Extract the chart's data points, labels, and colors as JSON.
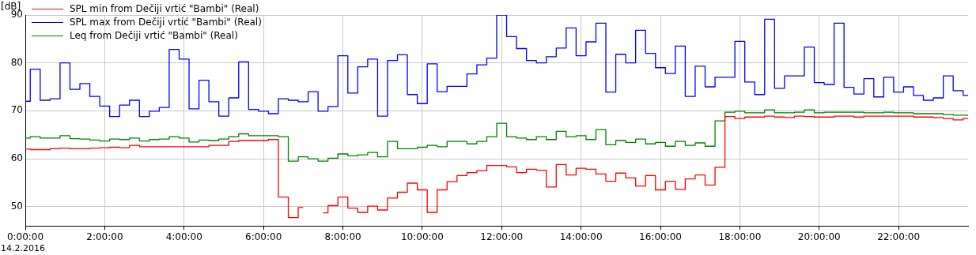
{
  "chart_data": {
    "type": "step",
    "ylabel": "[dB]",
    "annotations": [
      "14.2.2016"
    ],
    "x": [
      0,
      0.25,
      0.5,
      0.75,
      1,
      1.25,
      1.5,
      1.75,
      2,
      2.25,
      2.5,
      2.75,
      3,
      3.25,
      3.5,
      3.75,
      4,
      4.25,
      4.5,
      4.75,
      5,
      5.25,
      5.5,
      5.75,
      6,
      6.25,
      6.5,
      6.75,
      7,
      7.25,
      7.5,
      7.75,
      8,
      8.25,
      8.5,
      8.75,
      9,
      9.25,
      9.5,
      9.75,
      10,
      10.25,
      10.5,
      10.75,
      11,
      11.25,
      11.5,
      11.75,
      12,
      12.25,
      12.5,
      12.75,
      13,
      13.25,
      13.5,
      13.75,
      14,
      14.25,
      14.5,
      14.75,
      15,
      15.25,
      15.5,
      15.75,
      16,
      16.25,
      16.5,
      16.75,
      17,
      17.25,
      17.5,
      17.75,
      18,
      18.25,
      18.5,
      18.75,
      19,
      19.25,
      19.5,
      19.75,
      20,
      20.25,
      20.5,
      20.75,
      21,
      21.25,
      21.5,
      21.75,
      22,
      22.25,
      22.5,
      22.75,
      23,
      23.25,
      23.5,
      23.75
    ],
    "series": [
      {
        "name": "SPL min from Dečiji vrtić \"Bambi\" (Real)",
        "color": "#ff0000",
        "values": [
          62.0,
          61.9,
          61.9,
          62.1,
          62.2,
          62.1,
          62.1,
          62.2,
          62.3,
          62.4,
          62.3,
          62.8,
          62.5,
          62.5,
          62.5,
          62.5,
          62.5,
          62.5,
          62.5,
          62.8,
          62.8,
          63.6,
          63.8,
          63.8,
          63.8,
          64.0,
          52.0,
          47.7,
          49.8,
          null,
          48.7,
          50.2,
          52.0,
          49.7,
          48.8,
          50.1,
          49.3,
          51.8,
          53.0,
          54.9,
          53.5,
          48.8,
          53.5,
          55.2,
          56.5,
          57.1,
          57.5,
          58.6,
          58.6,
          58.3,
          57.1,
          57.8,
          57.6,
          54.1,
          58.8,
          56.6,
          58.0,
          57.8,
          56.8,
          55.3,
          57.0,
          56.0,
          54.3,
          56.5,
          53.5,
          55.3,
          53.6,
          55.8,
          56.6,
          54.5,
          58.2,
          68.8,
          68.4,
          68.7,
          68.7,
          68.9,
          68.7,
          68.6,
          68.9,
          68.8,
          68.7,
          68.7,
          68.9,
          68.9,
          68.7,
          68.9,
          68.9,
          68.9,
          68.9,
          68.9,
          68.7,
          68.7,
          68.6,
          68.4,
          68.1,
          68.4
        ]
      },
      {
        "name": "SPL max from Dečiji vrtić \"Bambi\" (Real)",
        "color": "#0000ff",
        "values": [
          72.0,
          78.7,
          72.2,
          72.5,
          80.0,
          74.5,
          75.7,
          73.0,
          71.0,
          68.8,
          71.2,
          72.2,
          68.8,
          69.9,
          70.7,
          82.8,
          80.8,
          70.4,
          76.4,
          71.9,
          68.9,
          72.7,
          80.2,
          70.3,
          69.9,
          69.4,
          72.5,
          72.2,
          71.9,
          74.0,
          69.9,
          70.9,
          81.5,
          73.7,
          79.2,
          80.8,
          68.9,
          80.5,
          81.7,
          73.4,
          71.5,
          79.8,
          74.0,
          75.1,
          75.1,
          77.7,
          79.6,
          81.0,
          90.0,
          85.5,
          83.0,
          80.5,
          80.0,
          81.3,
          83.1,
          87.3,
          81.5,
          84.4,
          88.3,
          73.9,
          81.8,
          80.0,
          86.8,
          82.0,
          79.0,
          77.8,
          83.5,
          73.0,
          79.3,
          75.0,
          77.0,
          77.0,
          84.5,
          76.0,
          73.4,
          89.1,
          74.7,
          77.3,
          77.3,
          83.3,
          75.9,
          75.5,
          88.3,
          74.9,
          73.5,
          76.7,
          72.9,
          77.0,
          73.9,
          75.0,
          73.2,
          72.2,
          72.7,
          77.3,
          74.2,
          73.2
        ]
      },
      {
        "name": "Leq from Dečiji vrtić \"Bambi\" (Real)",
        "color": "#008000",
        "values": [
          64.3,
          64.6,
          64.3,
          64.3,
          64.8,
          64.2,
          64.1,
          63.9,
          63.7,
          64.1,
          64.0,
          64.3,
          63.7,
          64.0,
          64.1,
          64.6,
          64.3,
          63.5,
          63.9,
          63.8,
          64.1,
          64.6,
          65.2,
          64.8,
          64.8,
          64.8,
          64.6,
          59.5,
          60.4,
          60.0,
          59.5,
          60.1,
          61.0,
          60.6,
          60.8,
          61.3,
          60.4,
          63.6,
          62.1,
          62.1,
          62.4,
          62.8,
          62.5,
          63.6,
          63.6,
          63.1,
          63.6,
          64.6,
          67.4,
          64.6,
          64.3,
          64.0,
          64.6,
          64.0,
          65.7,
          64.6,
          64.8,
          64.0,
          66.1,
          62.9,
          63.8,
          63.4,
          64.1,
          63.1,
          63.4,
          62.6,
          63.6,
          62.8,
          63.3,
          62.6,
          67.9,
          69.7,
          69.9,
          69.6,
          69.6,
          70.2,
          69.6,
          69.6,
          69.7,
          70.2,
          69.6,
          69.7,
          69.7,
          69.7,
          69.7,
          69.6,
          69.6,
          69.7,
          69.6,
          69.6,
          69.4,
          69.4,
          69.4,
          69.2,
          69.1,
          69.1
        ]
      }
    ],
    "xlim": [
      0,
      23.75
    ],
    "xticks": [
      {
        "value": 0,
        "label": "0:00:00"
      },
      {
        "value": 2,
        "label": "2:00:00"
      },
      {
        "value": 4,
        "label": "4:00:00"
      },
      {
        "value": 6,
        "label": "6:00:00"
      },
      {
        "value": 8,
        "label": "8:00:00"
      },
      {
        "value": 10,
        "label": "10:00:00"
      },
      {
        "value": 12,
        "label": "12:00:00"
      },
      {
        "value": 14,
        "label": "14:00:00"
      },
      {
        "value": 16,
        "label": "16:00:00"
      },
      {
        "value": 18,
        "label": "18:00:00"
      },
      {
        "value": 20,
        "label": "20:00:00"
      },
      {
        "value": 22,
        "label": "22:00:00"
      }
    ],
    "ylim": [
      46,
      90
    ],
    "yticks": [
      50,
      60,
      70,
      80,
      90
    ],
    "grid": true,
    "legend": "top left"
  }
}
